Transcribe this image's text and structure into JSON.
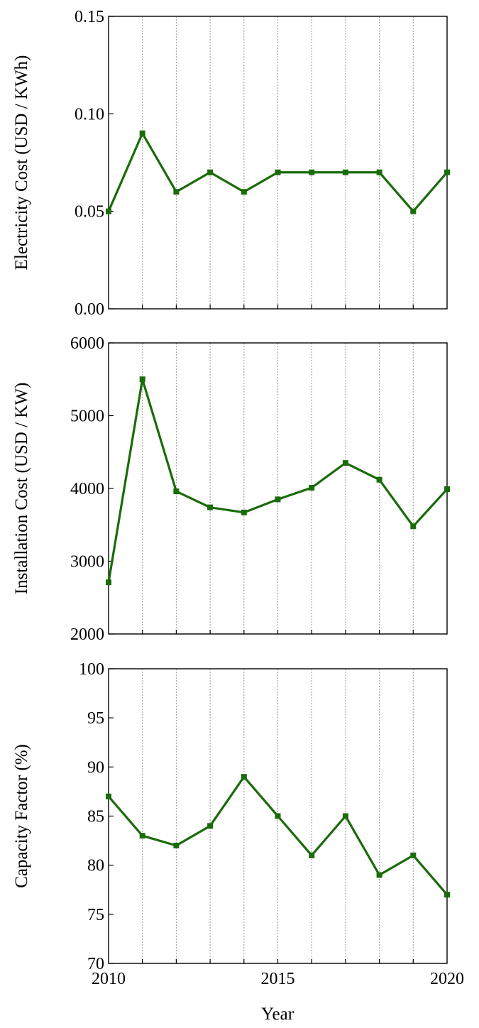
{
  "line_color": "#1a6b0a",
  "shared_xlabel": "Year",
  "chart_data": [
    {
      "type": "line",
      "title": "",
      "xlabel": "",
      "ylabel": "Electricity Cost (USD / KWh)",
      "xlim": [
        2010,
        2020
      ],
      "ylim": [
        0.0,
        0.15
      ],
      "yticks": [
        "0.00",
        "0.05",
        "0.10",
        "0.15"
      ],
      "xticks": [],
      "grid": "vertical dotted lines at each year",
      "x": [
        2010,
        2011,
        2012,
        2013,
        2014,
        2015,
        2016,
        2017,
        2018,
        2019,
        2020
      ],
      "series": [
        {
          "values": [
            0.05,
            0.09,
            0.06,
            0.07,
            0.06,
            0.07,
            0.07,
            0.07,
            0.07,
            0.05,
            0.07
          ]
        }
      ]
    },
    {
      "type": "line",
      "title": "",
      "xlabel": "",
      "ylabel": "Installation Cost (USD / KW)",
      "xlim": [
        2010,
        2020
      ],
      "ylim": [
        2000,
        6000
      ],
      "yticks": [
        "2000",
        "3000",
        "4000",
        "5000",
        "6000"
      ],
      "xticks": [],
      "grid": "vertical dotted lines at each year",
      "x": [
        2010,
        2011,
        2012,
        2013,
        2014,
        2015,
        2016,
        2017,
        2018,
        2019,
        2020
      ],
      "series": [
        {
          "values": [
            2710,
            5500,
            3960,
            3740,
            3670,
            3850,
            4010,
            4350,
            4120,
            3480,
            3990
          ]
        }
      ]
    },
    {
      "type": "line",
      "title": "",
      "xlabel": "Year",
      "ylabel": "Capacity Factor (%)",
      "xlim": [
        2010,
        2020
      ],
      "ylim": [
        70,
        100
      ],
      "yticks": [
        "70",
        "75",
        "80",
        "85",
        "90",
        "95",
        "100"
      ],
      "xticks": [
        "2010",
        "2015",
        "2020"
      ],
      "grid": "vertical dotted lines at each year",
      "x": [
        2010,
        2011,
        2012,
        2013,
        2014,
        2015,
        2016,
        2017,
        2018,
        2019,
        2020
      ],
      "series": [
        {
          "values": [
            87,
            83,
            82,
            84,
            89,
            85,
            81,
            85,
            79,
            81,
            77
          ]
        }
      ]
    }
  ]
}
